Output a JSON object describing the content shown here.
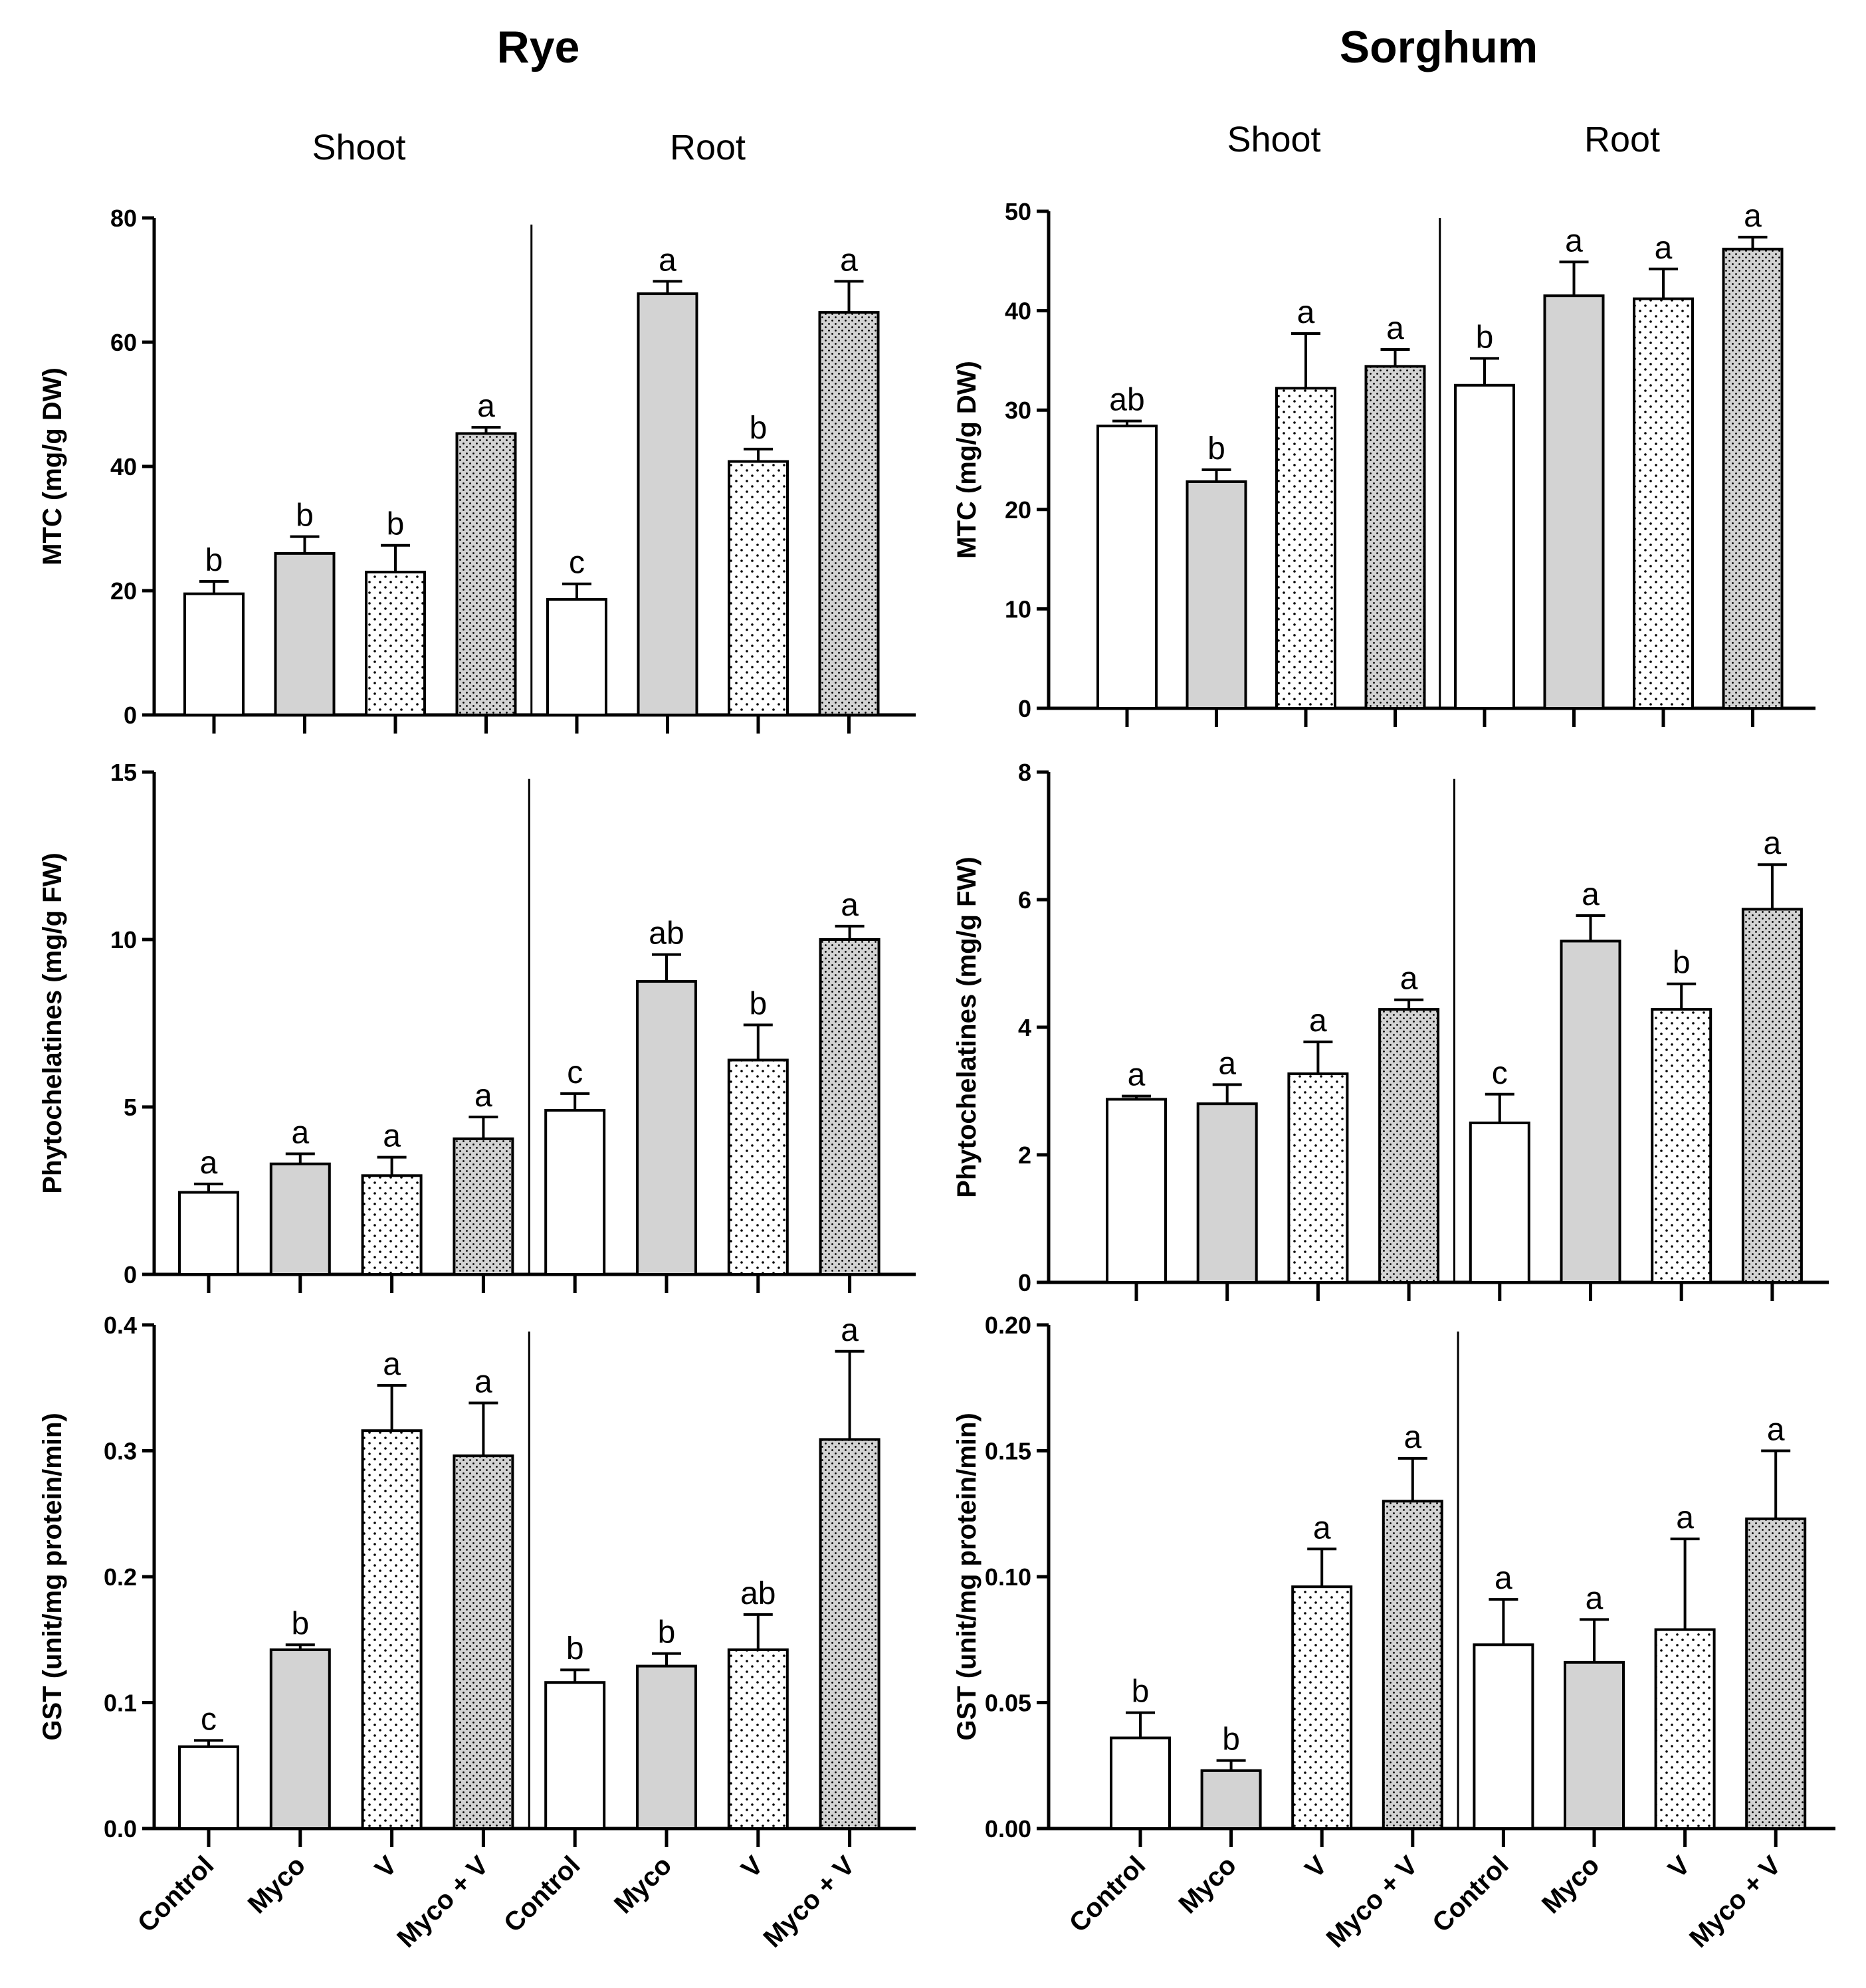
{
  "columns": [
    {
      "title": "Rye",
      "section_labels": [
        "Shoot",
        "Root"
      ]
    },
    {
      "title": "Sorghum",
      "section_labels": [
        "Shoot",
        "Root"
      ]
    }
  ],
  "categories": [
    "Control",
    "Myco",
    "V",
    "Myco + V",
    "Control",
    "Myco",
    "V",
    "Myco + V"
  ],
  "fill_patterns": [
    "white",
    "gray",
    "dots",
    "dense-dots",
    "white",
    "gray",
    "dots",
    "dense-dots"
  ],
  "colors": {
    "gray_fill": "#d3d3d3",
    "dot_fill": "#000000",
    "axis": "#000000"
  },
  "chart_data": [
    {
      "type": "bar",
      "title": "Rye",
      "ylabel": "MTC (mg/g DW)",
      "ylim": [
        0,
        80
      ],
      "yticks": [
        0,
        20,
        40,
        60,
        80
      ],
      "tick_labels": [
        "0",
        "20",
        "40",
        "60",
        "80"
      ],
      "categories": [
        "Control",
        "Myco",
        "V",
        "Myco + V",
        "Control",
        "Myco",
        "V",
        "Myco + V"
      ],
      "groups": [
        "Shoot",
        "Root"
      ],
      "values": [
        19.5,
        26,
        23,
        45.3,
        18.6,
        67.8,
        40.8,
        64.8
      ],
      "errors": [
        2.0,
        2.7,
        4.3,
        1.0,
        2.5,
        2.0,
        2.0,
        5.0
      ],
      "letters": [
        "b",
        "b",
        "b",
        "a",
        "c",
        "a",
        "b",
        "a"
      ]
    },
    {
      "type": "bar",
      "title": "Sorghum",
      "ylabel": "MTC (mg/g DW)",
      "ylim": [
        0,
        50
      ],
      "yticks": [
        0,
        10,
        20,
        30,
        40,
        50
      ],
      "tick_labels": [
        "0",
        "10",
        "20",
        "30",
        "40",
        "50"
      ],
      "categories": [
        "Control",
        "Myco",
        "V",
        "Myco + V",
        "Control",
        "Myco",
        "V",
        "Myco + V"
      ],
      "groups": [
        "Shoot",
        "Root"
      ],
      "values": [
        28.4,
        22.8,
        32.2,
        34.4,
        32.5,
        41.5,
        41.2,
        46.2
      ],
      "errors": [
        0.5,
        1.2,
        5.5,
        1.7,
        2.7,
        3.4,
        3.0,
        1.2
      ],
      "letters": [
        "ab",
        "b",
        "a",
        "a",
        "b",
        "a",
        "a",
        "a"
      ]
    },
    {
      "type": "bar",
      "title": "Rye",
      "ylabel": "Phytochelatines (mg/g FW)",
      "ylim": [
        0,
        15
      ],
      "yticks": [
        0,
        5,
        10,
        15
      ],
      "tick_labels": [
        "0",
        "5",
        "10",
        "15"
      ],
      "categories": [
        "Control",
        "Myco",
        "V",
        "Myco + V",
        "Control",
        "Myco",
        "V",
        "Myco + V"
      ],
      "groups": [
        "Shoot",
        "Root"
      ],
      "values": [
        2.45,
        3.3,
        2.95,
        4.05,
        4.9,
        8.75,
        6.4,
        10.0
      ],
      "errors": [
        0.25,
        0.3,
        0.55,
        0.65,
        0.5,
        0.8,
        1.05,
        0.4
      ],
      "letters": [
        "a",
        "a",
        "a",
        "a",
        "c",
        "ab",
        "b",
        "a"
      ]
    },
    {
      "type": "bar",
      "title": "Sorghum",
      "ylabel": "Phytochelatines (mg/g FW)",
      "ylim": [
        0,
        8
      ],
      "yticks": [
        0,
        2,
        4,
        6,
        8
      ],
      "tick_labels": [
        "0",
        "2",
        "4",
        "6",
        "8"
      ],
      "categories": [
        "Control",
        "Myco",
        "V",
        "Myco + V",
        "Control",
        "Myco",
        "V",
        "Myco + V"
      ],
      "groups": [
        "Shoot",
        "Root"
      ],
      "values": [
        2.87,
        2.8,
        3.27,
        4.28,
        2.5,
        5.35,
        4.28,
        5.85
      ],
      "errors": [
        0.05,
        0.3,
        0.5,
        0.15,
        0.45,
        0.4,
        0.4,
        0.7
      ],
      "letters": [
        "a",
        "a",
        "a",
        "a",
        "c",
        "a",
        "b",
        "a"
      ]
    },
    {
      "type": "bar",
      "title": "Rye",
      "ylabel": "GST (unit/mg protein/min)",
      "ylim": [
        0,
        0.4
      ],
      "yticks": [
        0,
        0.1,
        0.2,
        0.3,
        0.4
      ],
      "tick_labels": [
        "0.0",
        "0.1",
        "0.2",
        "0.3",
        "0.4"
      ],
      "categories": [
        "Control",
        "Myco",
        "V",
        "Myco + V",
        "Control",
        "Myco",
        "V",
        "Myco + V"
      ],
      "groups": [
        "Shoot",
        "Root"
      ],
      "values": [
        0.065,
        0.142,
        0.316,
        0.296,
        0.116,
        0.129,
        0.142,
        0.309
      ],
      "errors": [
        0.005,
        0.004,
        0.036,
        0.042,
        0.01,
        0.01,
        0.028,
        0.07
      ],
      "letters": [
        "c",
        "b",
        "a",
        "a",
        "b",
        "b",
        "ab",
        "a"
      ]
    },
    {
      "type": "bar",
      "title": "Sorghum",
      "ylabel": "GST (unit/mg protein/min)",
      "ylim": [
        0,
        0.2
      ],
      "yticks": [
        0,
        0.05,
        0.1,
        0.15,
        0.2
      ],
      "tick_labels": [
        "0.00",
        "0.05",
        "0.10",
        "0.15",
        "0.20"
      ],
      "categories": [
        "Control",
        "Myco",
        "V",
        "Myco + V",
        "Control",
        "Myco",
        "V",
        "Myco + V"
      ],
      "groups": [
        "Shoot",
        "Root"
      ],
      "values": [
        0.036,
        0.023,
        0.096,
        0.13,
        0.073,
        0.066,
        0.079,
        0.123
      ],
      "errors": [
        0.01,
        0.004,
        0.015,
        0.017,
        0.018,
        0.017,
        0.036,
        0.027
      ],
      "letters": [
        "b",
        "b",
        "a",
        "a",
        "a",
        "a",
        "a",
        "a"
      ]
    }
  ]
}
